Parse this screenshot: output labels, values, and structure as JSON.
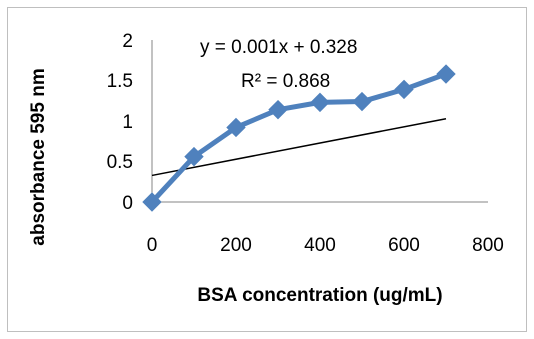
{
  "chart_data": {
    "type": "line",
    "title": "",
    "xlabel": "BSA concentration (ug/mL)",
    "ylabel": "absorbance 595 nm",
    "xlim": [
      0,
      800
    ],
    "ylim": [
      0,
      2
    ],
    "x_ticks": [
      "0",
      "200",
      "400",
      "600",
      "800"
    ],
    "y_ticks": [
      "0",
      "0.5",
      "1",
      "1.5",
      "2"
    ],
    "grid": false,
    "legend": "none",
    "series": [
      {
        "x": [
          0,
          100,
          200,
          300,
          400,
          500,
          600,
          700
        ],
        "values": [
          0,
          0.56,
          0.92,
          1.14,
          1.23,
          1.24,
          1.39,
          1.58
        ],
        "color": "#4f81bd",
        "marker": "diamond"
      }
    ],
    "trendline": {
      "type": "linear",
      "slope": 0.001,
      "intercept": 0.328,
      "color": "#000000",
      "equation": "y = 0.001x + 0.328",
      "r_squared": "R² = 0.868"
    }
  }
}
